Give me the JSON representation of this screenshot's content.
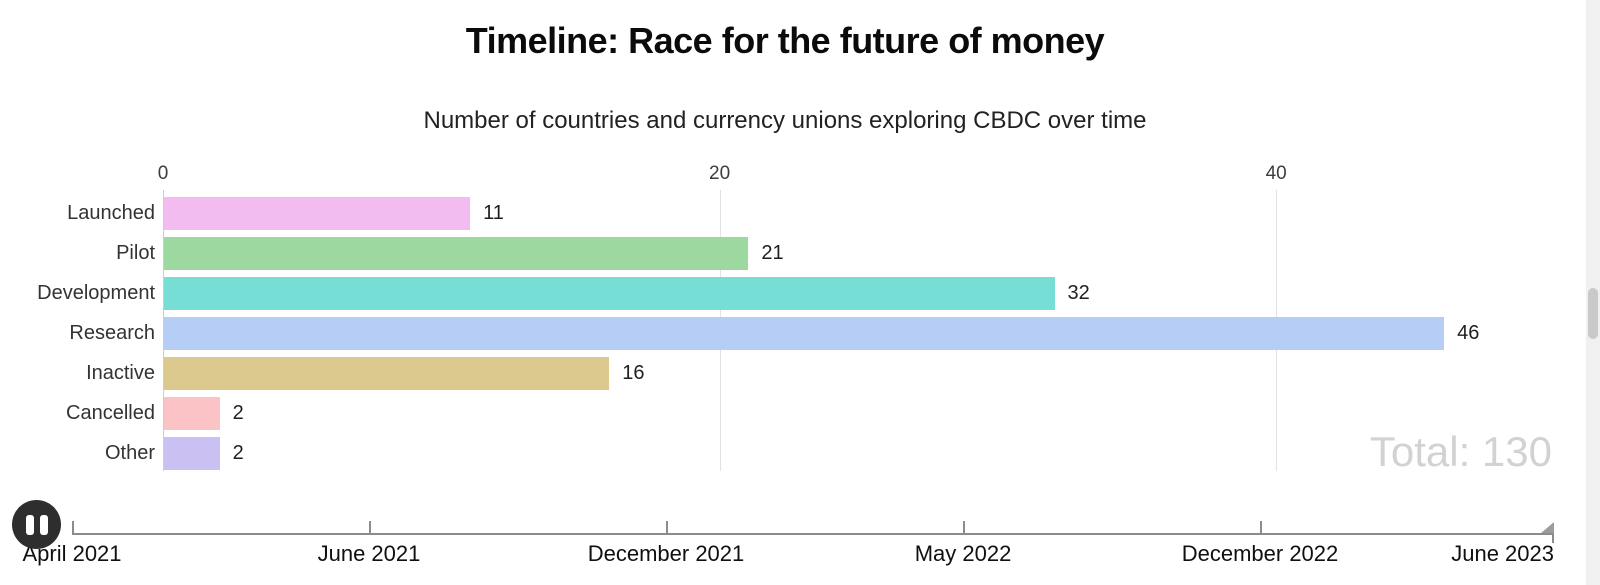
{
  "header": {
    "title": "Timeline: Race for the future of money",
    "subtitle": "Number of countries and currency unions exploring CBDC over time"
  },
  "chart_data": {
    "type": "bar",
    "orientation": "horizontal",
    "title": "Timeline: Race for the future of money",
    "subtitle": "Number of countries and currency unions exploring CBDC over time",
    "categories": [
      "Launched",
      "Pilot",
      "Development",
      "Research",
      "Inactive",
      "Cancelled",
      "Other"
    ],
    "values": [
      11,
      21,
      32,
      46,
      16,
      2,
      2
    ],
    "bar_colors": [
      "#f3bcf1",
      "#9ed8a1",
      "#77ded6",
      "#b6cef6",
      "#dcc98e",
      "#fbc3c6",
      "#cbc0f2"
    ],
    "x_ticks": [
      0,
      20,
      40
    ],
    "xlim": [
      0,
      50
    ],
    "grid": true,
    "value_labels_shown": true,
    "total_label": "Total: 130",
    "legend": "none"
  },
  "timeline": {
    "tick_labels": [
      "April 2021",
      "June 2021",
      "December 2021",
      "May 2022",
      "December 2022"
    ],
    "end_label": "June 2023",
    "state": "playing"
  },
  "controls": {
    "pause_button": "pause"
  },
  "colors": {
    "grid": "#e2e2e2",
    "axis_line": "#cfcfcf",
    "total": "#d2d2d2",
    "pause_bg": "#2e2e2e",
    "sb_track": "#f0f0f0",
    "sb_thumb": "#c9c9c9",
    "timeline_line": "#8c8c8c"
  }
}
